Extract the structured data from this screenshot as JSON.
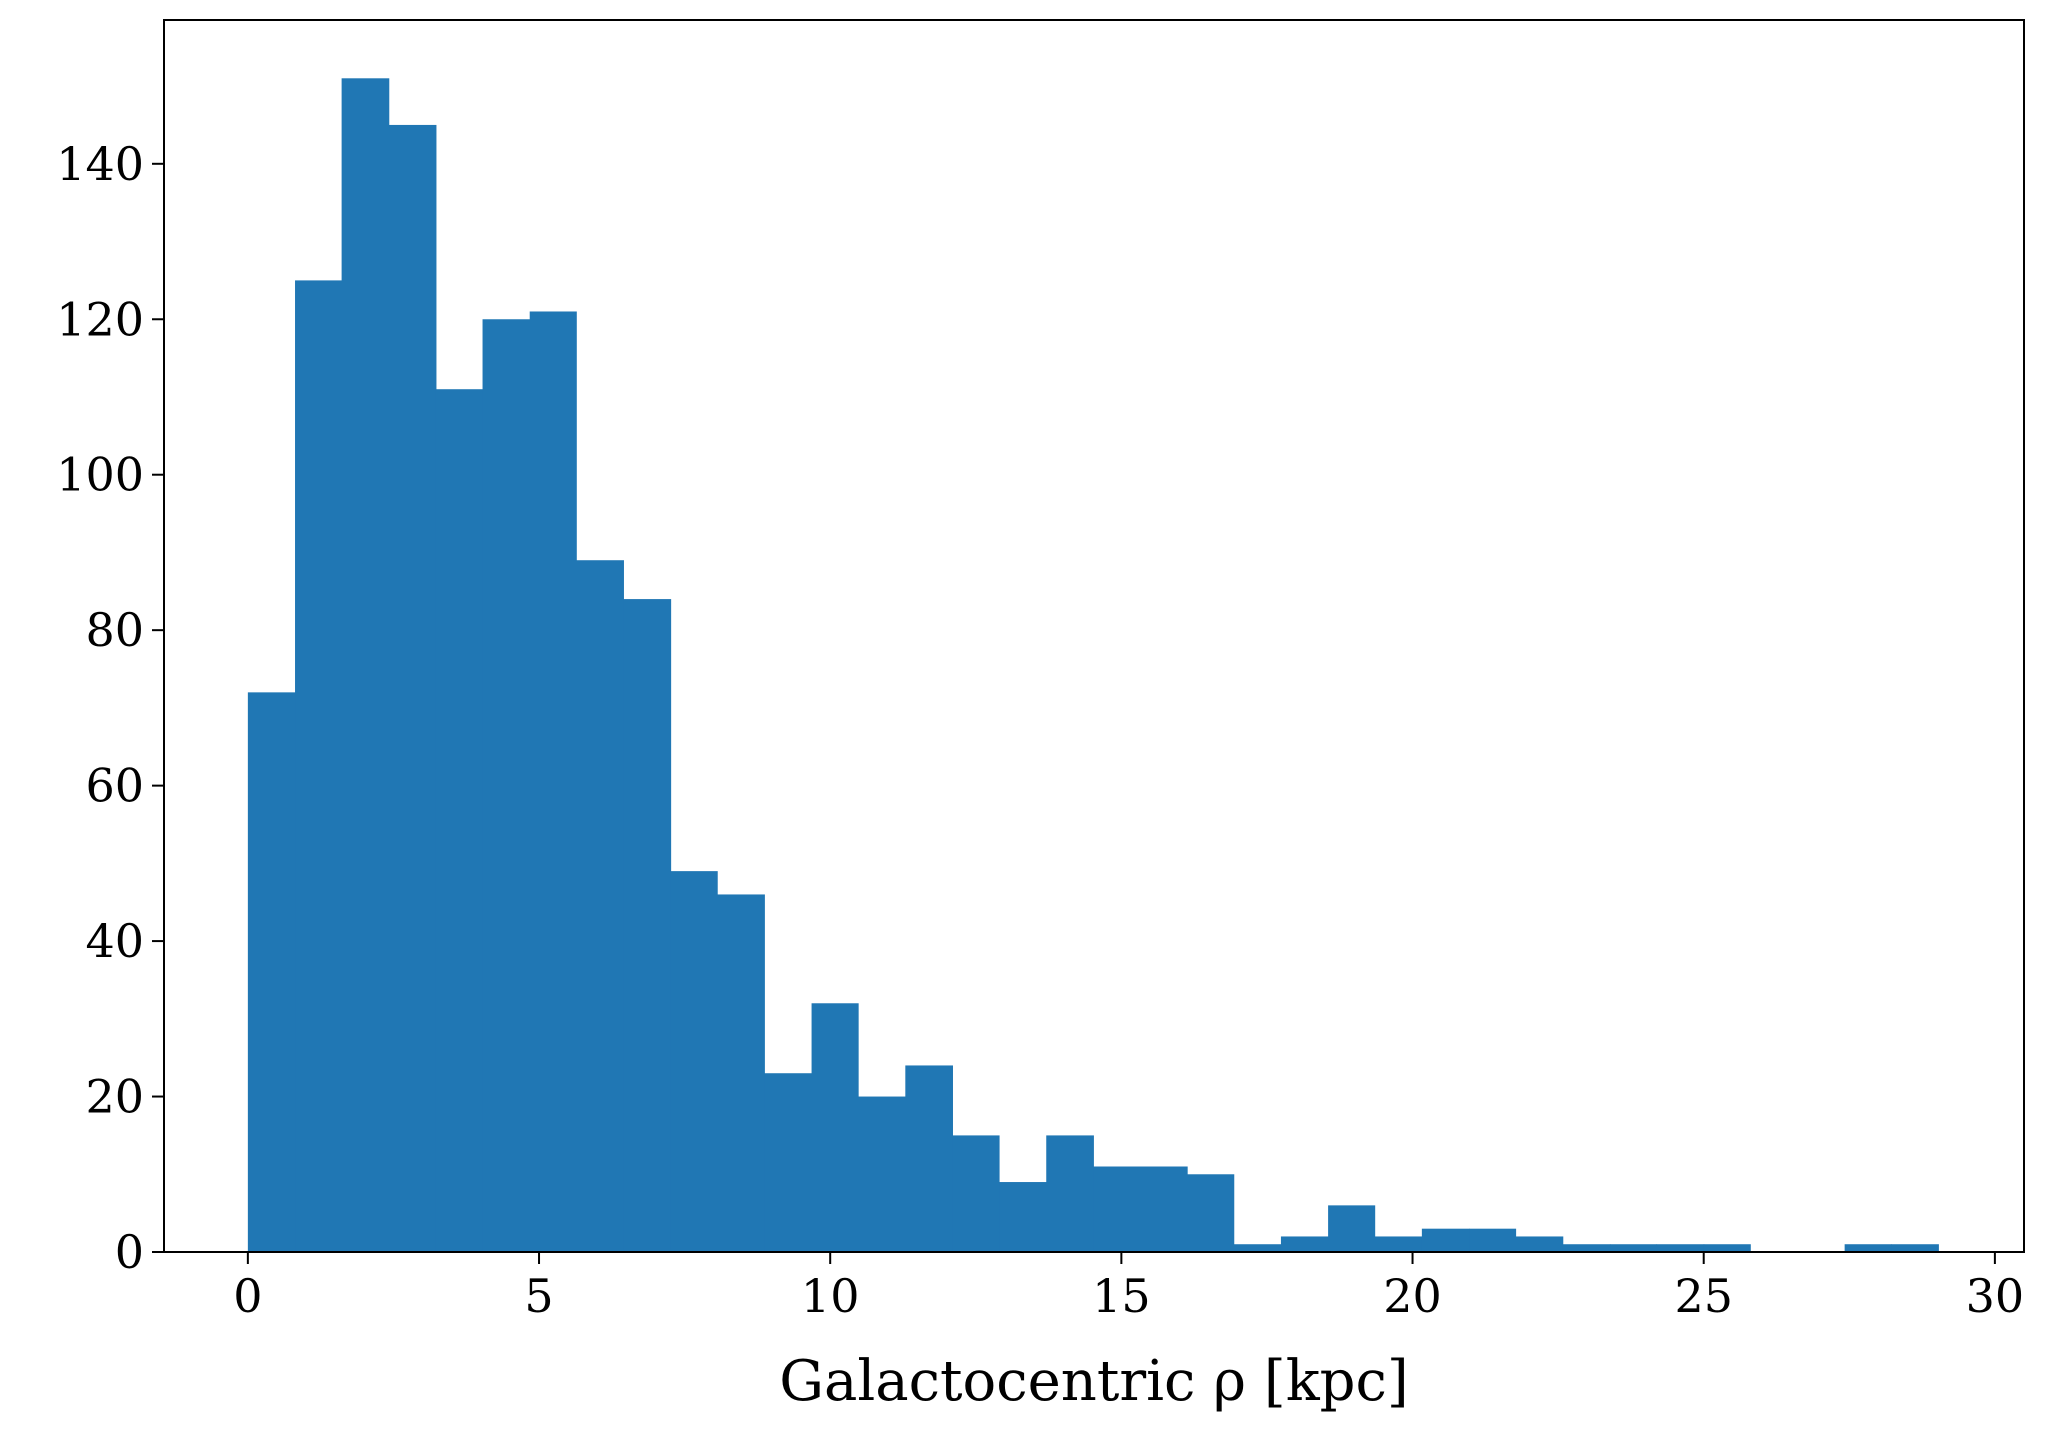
{
  "chart_data": {
    "type": "histogram",
    "x_label": "Galactocentric ρ [kpc]",
    "bins": [
      0,
      0.81,
      1.61,
      2.42,
      3.23,
      4.03,
      4.84,
      5.64,
      6.45,
      7.26,
      8.06,
      8.87,
      9.68,
      10.48,
      11.29,
      12.1,
      12.9,
      13.71,
      14.52,
      15.32,
      16.13,
      16.93,
      17.74,
      18.55,
      19.35,
      20.16,
      20.97,
      21.77,
      22.58,
      23.39,
      24.19,
      25.0,
      25.8,
      26.61,
      27.42,
      28.22,
      29.03
    ],
    "values": [
      72,
      125,
      151,
      145,
      111,
      120,
      121,
      89,
      84,
      49,
      46,
      23,
      32,
      20,
      24,
      15,
      9,
      15,
      11,
      11,
      10,
      1,
      2,
      6,
      2,
      3,
      3,
      2,
      1,
      1,
      1,
      1,
      0,
      0,
      1,
      1
    ],
    "color": "#2077b4",
    "xlim": [
      -1.44,
      30.5
    ],
    "xticks": [
      0,
      5,
      10,
      15,
      20,
      25,
      30
    ],
    "ylim": [
      0,
      158.5
    ],
    "yticks": [
      0,
      20,
      40,
      60,
      80,
      100,
      120,
      140
    ]
  }
}
